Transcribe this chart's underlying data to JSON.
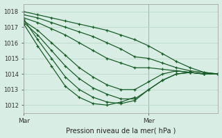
{
  "title": "Pression niveau de la mer( hPa )",
  "xlabel_mar": "Mar",
  "xlabel_mer": "Mer",
  "ylim": [
    1011.5,
    1018.5
  ],
  "xlim": [
    0,
    84
  ],
  "yticks": [
    1012,
    1013,
    1014,
    1015,
    1016,
    1017,
    1018
  ],
  "mer_x": 54,
  "bg_color": "#d8ede4",
  "grid_color": "#b4d4c4",
  "line_color": "#1a5c2a",
  "series": [
    {
      "x": [
        0,
        6,
        12,
        18,
        24,
        30,
        36,
        42,
        48,
        54,
        60,
        66,
        72,
        78,
        84
      ],
      "y": [
        1018.0,
        1017.8,
        1017.6,
        1017.4,
        1017.2,
        1017.0,
        1016.8,
        1016.5,
        1016.2,
        1015.8,
        1015.3,
        1014.8,
        1014.4,
        1014.1,
        1014.0
      ]
    },
    {
      "x": [
        0,
        6,
        12,
        18,
        24,
        30,
        36,
        42,
        48,
        54,
        60,
        66,
        72,
        78,
        84
      ],
      "y": [
        1017.8,
        1017.6,
        1017.3,
        1017.0,
        1016.7,
        1016.4,
        1016.0,
        1015.6,
        1015.1,
        1015.0,
        1014.7,
        1014.4,
        1014.2,
        1014.1,
        1014.0
      ]
    },
    {
      "x": [
        0,
        6,
        12,
        18,
        24,
        30,
        36,
        42,
        48,
        54,
        60,
        66,
        72,
        78,
        84
      ],
      "y": [
        1017.6,
        1017.3,
        1016.9,
        1016.5,
        1016.0,
        1015.5,
        1015.0,
        1014.7,
        1014.4,
        1014.4,
        1014.3,
        1014.2,
        1014.1,
        1014.0,
        1014.0
      ]
    },
    {
      "x": [
        0,
        6,
        12,
        18,
        24,
        30,
        36,
        42,
        48,
        54,
        60,
        66,
        72,
        78,
        84
      ],
      "y": [
        1017.4,
        1016.8,
        1016.0,
        1015.2,
        1014.4,
        1013.8,
        1013.3,
        1013.0,
        1013.0,
        1013.5,
        1014.0,
        1014.2,
        1014.1,
        1014.0,
        1014.0
      ]
    },
    {
      "x": [
        0,
        6,
        12,
        18,
        24,
        30,
        36,
        42,
        48,
        54,
        60,
        66,
        72,
        78,
        84
      ],
      "y": [
        1017.3,
        1016.5,
        1015.5,
        1014.5,
        1013.7,
        1013.1,
        1012.7,
        1012.4,
        1012.4,
        1013.0,
        1013.6,
        1014.0,
        1014.1,
        1014.0,
        1014.0
      ]
    },
    {
      "x": [
        0,
        6,
        12,
        18,
        24,
        30,
        36,
        42,
        48,
        54,
        60,
        66,
        72,
        78,
        84
      ],
      "y": [
        1017.5,
        1016.2,
        1015.0,
        1013.8,
        1013.0,
        1012.5,
        1012.2,
        1012.1,
        1012.3,
        1013.0,
        1013.6,
        1014.0,
        1014.1,
        1014.0,
        1014.0
      ]
    },
    {
      "x": [
        0,
        6,
        12,
        18,
        24,
        30,
        36,
        42,
        48
      ],
      "y": [
        1017.2,
        1015.8,
        1014.5,
        1013.2,
        1012.5,
        1012.1,
        1012.0,
        1012.2,
        1012.5
      ]
    }
  ]
}
